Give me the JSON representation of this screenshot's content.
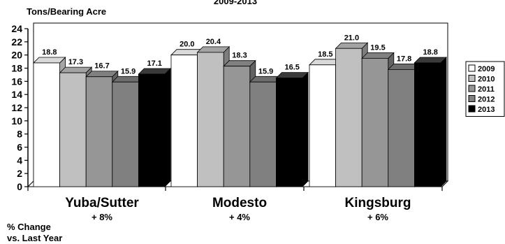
{
  "chart_data": {
    "type": "bar",
    "title": "2009-2013",
    "ylabel": "Tons/Bearing Acre",
    "categories": [
      "Yuba/Sutter",
      "Modesto",
      "Kingsburg"
    ],
    "series": [
      {
        "name": "2009",
        "color": "#ffffff",
        "values": [
          18.8,
          20.0,
          18.5
        ]
      },
      {
        "name": "2010",
        "color": "#c0c0c0",
        "values": [
          17.3,
          20.4,
          21.0
        ]
      },
      {
        "name": "2011",
        "color": "#969696",
        "values": [
          16.7,
          18.3,
          19.5
        ]
      },
      {
        "name": "2012",
        "color": "#808080",
        "values": [
          15.9,
          15.9,
          17.8
        ]
      },
      {
        "name": "2013",
        "color": "#000000",
        "values": [
          17.1,
          16.5,
          18.8
        ]
      }
    ],
    "value_labels": [
      [
        "18.8",
        "20.0",
        "18.5"
      ],
      [
        "17.3",
        "20.4",
        "21.0"
      ],
      [
        "16.7",
        "18.3",
        "19.5"
      ],
      [
        "15.9",
        "15.9",
        "17.8"
      ],
      [
        "17.1",
        "16.5",
        "18.8"
      ]
    ],
    "ylim": [
      0,
      24
    ],
    "yticks": [
      0,
      2,
      4,
      6,
      8,
      10,
      12,
      14,
      16,
      18,
      20,
      22,
      24
    ],
    "pct_change": [
      "+ 8%",
      "+ 4%",
      "+ 6%"
    ],
    "pct_change_label_line1": "% Change",
    "pct_change_label_line2": "vs. Last Year",
    "legend_position": "right",
    "grid": false,
    "style": "3d-bars"
  }
}
